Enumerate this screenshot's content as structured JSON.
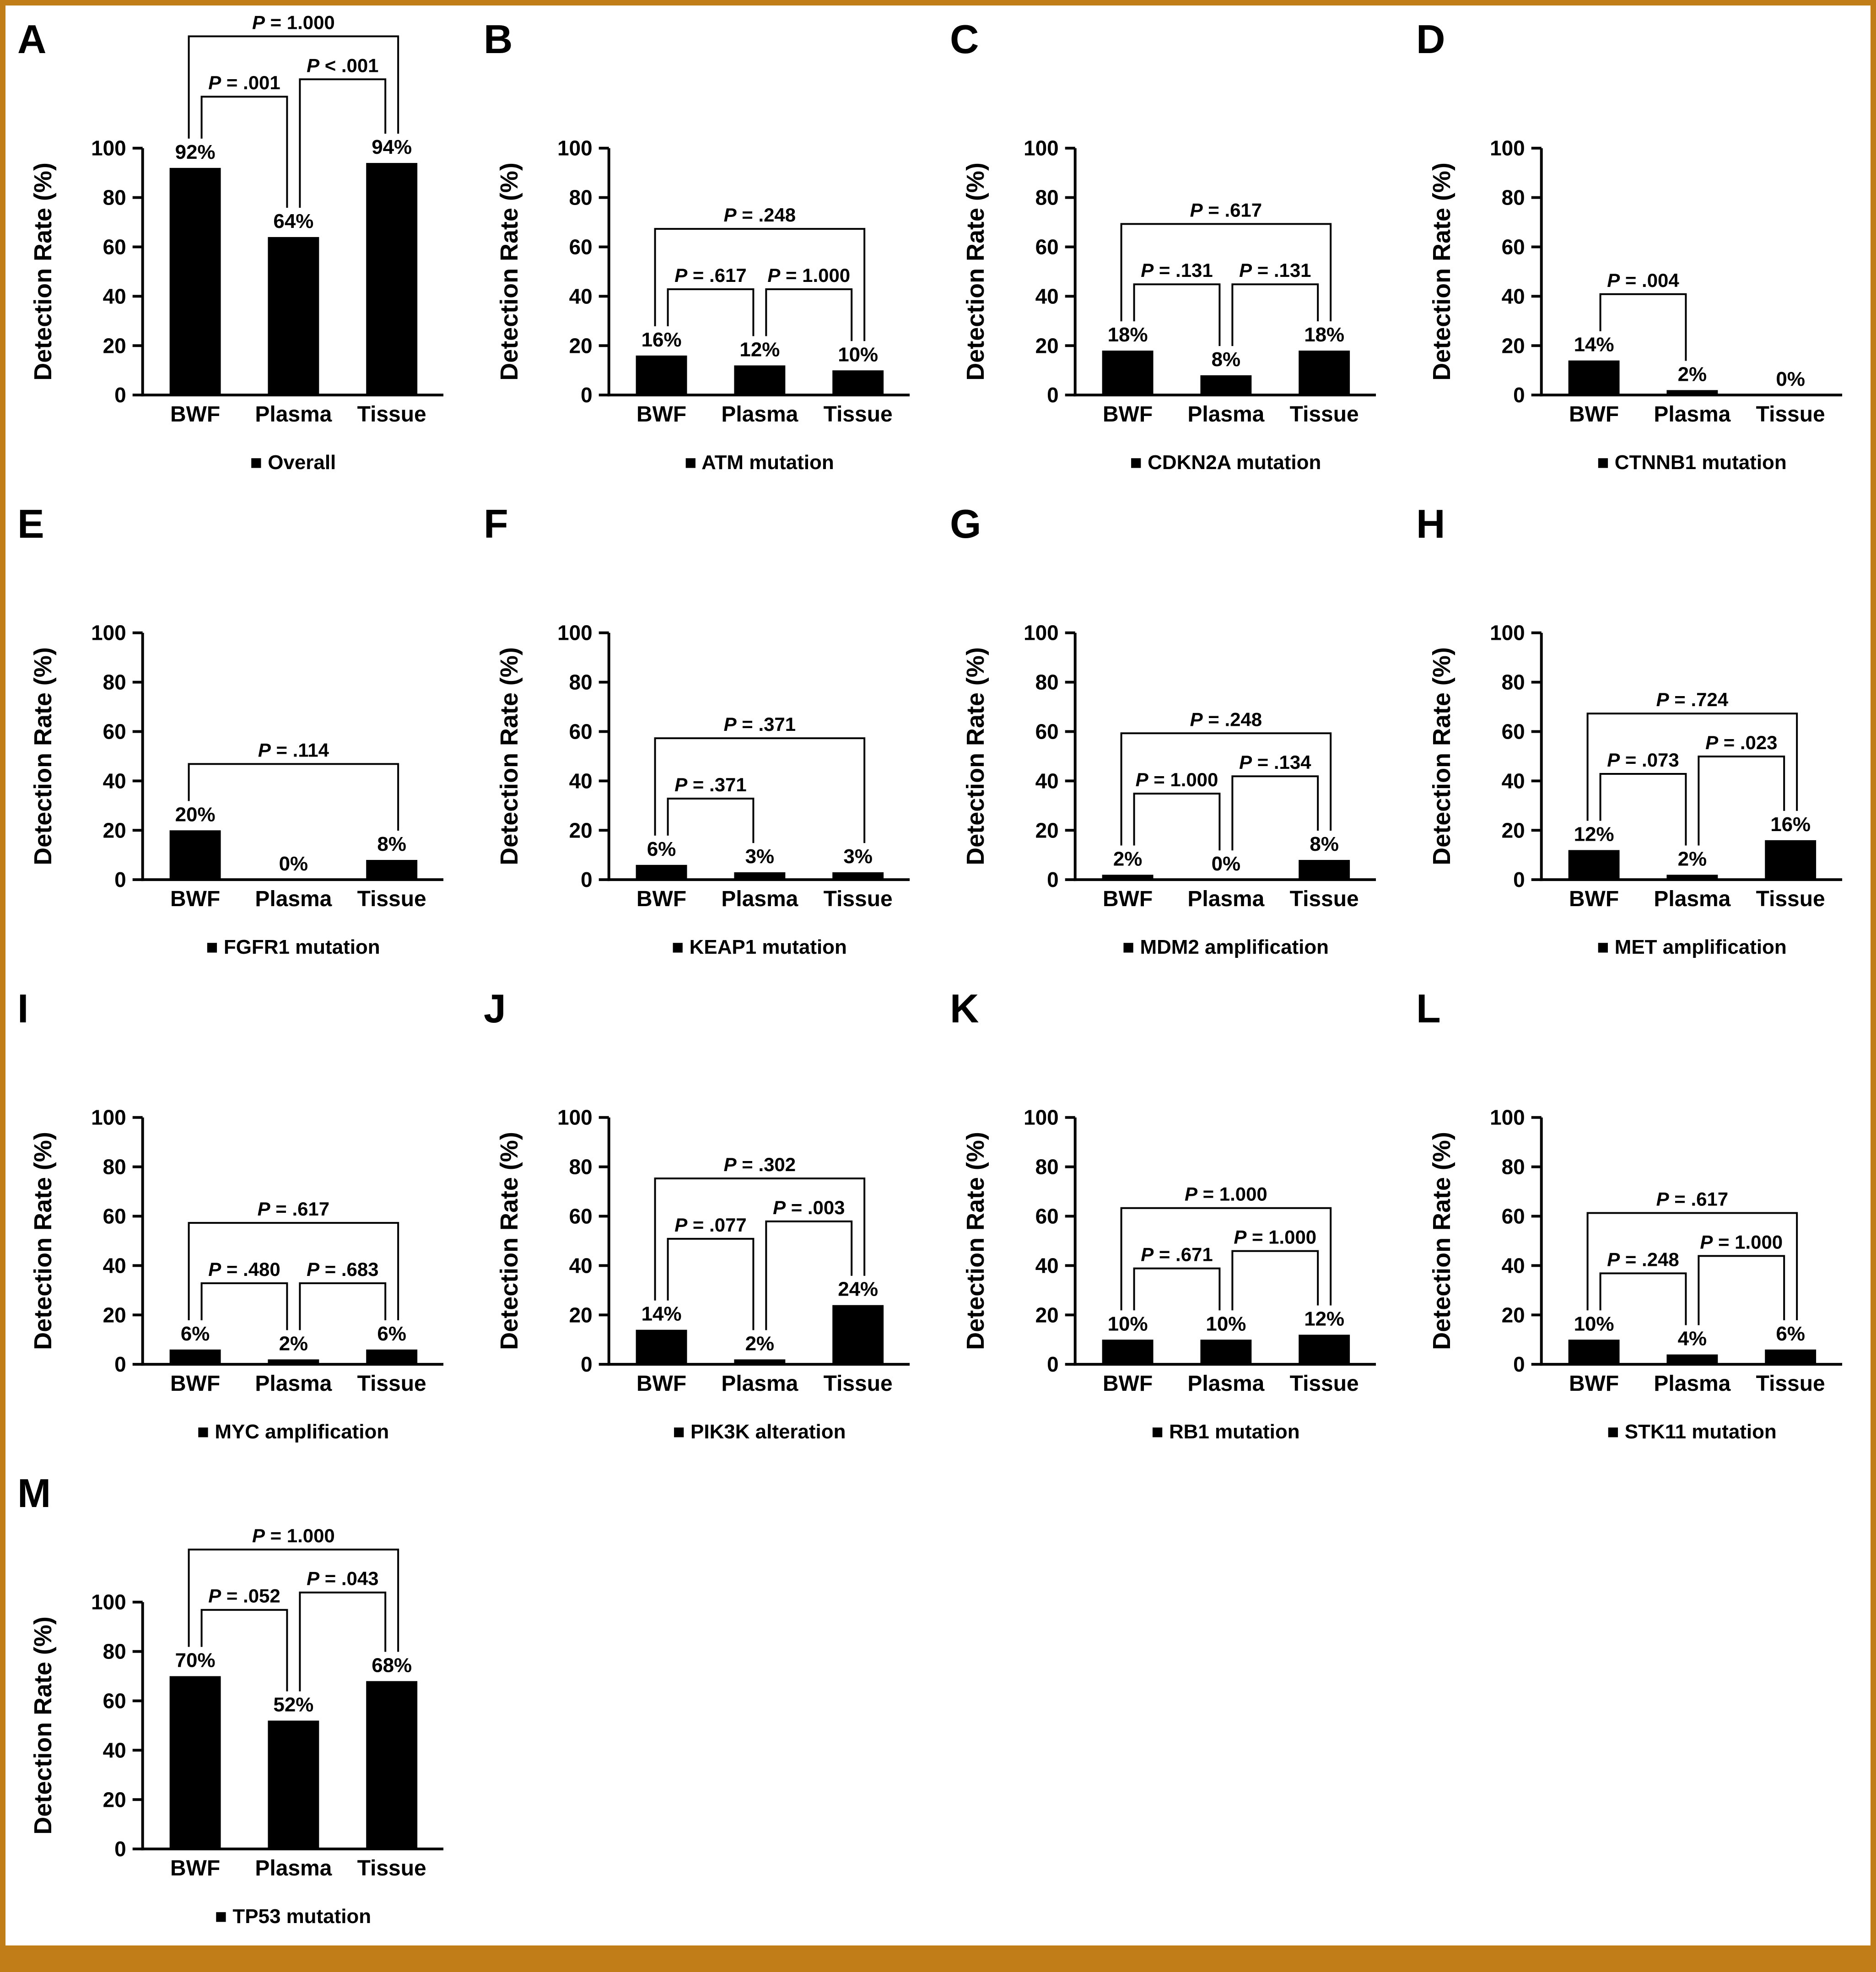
{
  "figure": {
    "frame_color": "#C17E18",
    "background_color": "#FFFFFF",
    "bar_color": "#000000",
    "y_ticks": [
      0,
      20,
      40,
      60,
      80,
      100
    ],
    "panel_letters": [
      "A",
      "B",
      "C",
      "D",
      "E",
      "F",
      "G",
      "H",
      "I",
      "J",
      "K",
      "L",
      "M"
    ]
  },
  "chart_data": [
    {
      "panel": "A",
      "type": "bar",
      "legend": "Overall",
      "xlabel": "",
      "ylabel": "Detection Rate (%)",
      "ylim": [
        0,
        100
      ],
      "grid": false,
      "categories": [
        "BWF",
        "Plasma",
        "Tissue"
      ],
      "values": [
        92,
        64,
        94
      ],
      "p_values": [
        {
          "pair": [
            0,
            1
          ],
          "label": "P = .001",
          "level": 1
        },
        {
          "pair": [
            1,
            2
          ],
          "label": "P < .001",
          "level": 1.5
        },
        {
          "pair": [
            0,
            2
          ],
          "label": "P = 1.000",
          "level": 2
        }
      ]
    },
    {
      "panel": "B",
      "type": "bar",
      "legend": "ATM mutation",
      "xlabel": "",
      "ylabel": "Detection Rate (%)",
      "ylim": [
        0,
        100
      ],
      "grid": false,
      "categories": [
        "BWF",
        "Plasma",
        "Tissue"
      ],
      "values": [
        16,
        12,
        10
      ],
      "p_values": [
        {
          "pair": [
            0,
            1
          ],
          "label": "P = .617",
          "level": 1
        },
        {
          "pair": [
            1,
            2
          ],
          "label": "P = 1.000",
          "level": 1
        },
        {
          "pair": [
            0,
            2
          ],
          "label": "P = .248",
          "level": 2
        }
      ]
    },
    {
      "panel": "C",
      "type": "bar",
      "legend": "CDKN2A mutation",
      "xlabel": "",
      "ylabel": "Detection Rate (%)",
      "ylim": [
        0,
        100
      ],
      "grid": false,
      "categories": [
        "BWF",
        "Plasma",
        "Tissue"
      ],
      "values": [
        18,
        8,
        18
      ],
      "p_values": [
        {
          "pair": [
            0,
            1
          ],
          "label": "P = .131",
          "level": 1
        },
        {
          "pair": [
            1,
            2
          ],
          "label": "P = .131",
          "level": 1
        },
        {
          "pair": [
            0,
            2
          ],
          "label": "P = .617",
          "level": 2
        }
      ]
    },
    {
      "panel": "D",
      "type": "bar",
      "legend": "CTNNB1 mutation",
      "xlabel": "",
      "ylabel": "Detection Rate (%)",
      "ylim": [
        0,
        100
      ],
      "grid": false,
      "categories": [
        "BWF",
        "Plasma",
        "Tissue"
      ],
      "values": [
        14,
        2,
        0
      ],
      "p_values": [
        {
          "pair": [
            0,
            1
          ],
          "label": "P = .004",
          "level": 1
        }
      ]
    },
    {
      "panel": "E",
      "type": "bar",
      "legend": "FGFR1 mutation",
      "xlabel": "",
      "ylabel": "Detection Rate (%)",
      "ylim": [
        0,
        100
      ],
      "grid": false,
      "categories": [
        "BWF",
        "Plasma",
        "Tissue"
      ],
      "values": [
        20,
        0,
        8
      ],
      "p_values": [
        {
          "pair": [
            0,
            2
          ],
          "label": "P = .114",
          "level": 1
        }
      ]
    },
    {
      "panel": "F",
      "type": "bar",
      "legend": "KEAP1 mutation",
      "xlabel": "",
      "ylabel": "Detection Rate (%)",
      "ylim": [
        0,
        100
      ],
      "grid": false,
      "categories": [
        "BWF",
        "Plasma",
        "Tissue"
      ],
      "values": [
        6,
        3,
        3
      ],
      "p_values": [
        {
          "pair": [
            0,
            1
          ],
          "label": "P = .371",
          "level": 1
        },
        {
          "pair": [
            0,
            2
          ],
          "label": "P = .371",
          "level": 2
        }
      ]
    },
    {
      "panel": "G",
      "type": "bar",
      "legend": "MDM2 amplification",
      "xlabel": "",
      "ylabel": "Detection Rate (%)",
      "ylim": [
        0,
        100
      ],
      "grid": false,
      "categories": [
        "BWF",
        "Plasma",
        "Tissue"
      ],
      "values": [
        2,
        0,
        8
      ],
      "p_values": [
        {
          "pair": [
            0,
            1
          ],
          "label": "P = 1.000",
          "level": 1
        },
        {
          "pair": [
            1,
            2
          ],
          "label": "P = .134",
          "level": 1.5
        },
        {
          "pair": [
            0,
            2
          ],
          "label": "P = .248",
          "level": 2
        }
      ]
    },
    {
      "panel": "H",
      "type": "bar",
      "legend": "MET amplification",
      "xlabel": "",
      "ylabel": "Detection Rate (%)",
      "ylim": [
        0,
        100
      ],
      "grid": false,
      "categories": [
        "BWF",
        "Plasma",
        "Tissue"
      ],
      "values": [
        12,
        2,
        16
      ],
      "p_values": [
        {
          "pair": [
            0,
            1
          ],
          "label": "P = .073",
          "level": 1
        },
        {
          "pair": [
            1,
            2
          ],
          "label": "P = .023",
          "level": 1.5
        },
        {
          "pair": [
            0,
            2
          ],
          "label": "P = .724",
          "level": 2
        }
      ]
    },
    {
      "panel": "I",
      "type": "bar",
      "legend": "MYC amplification",
      "xlabel": "",
      "ylabel": "Detection Rate (%)",
      "ylim": [
        0,
        100
      ],
      "grid": false,
      "categories": [
        "BWF",
        "Plasma",
        "Tissue"
      ],
      "values": [
        6,
        2,
        6
      ],
      "p_values": [
        {
          "pair": [
            0,
            1
          ],
          "label": "P = .480",
          "level": 1
        },
        {
          "pair": [
            1,
            2
          ],
          "label": "P = .683",
          "level": 1
        },
        {
          "pair": [
            0,
            2
          ],
          "label": "P = .617",
          "level": 2
        }
      ]
    },
    {
      "panel": "J",
      "type": "bar",
      "legend": "PIK3K alteration",
      "xlabel": "",
      "ylabel": "Detection Rate (%)",
      "ylim": [
        0,
        100
      ],
      "grid": false,
      "categories": [
        "BWF",
        "Plasma",
        "Tissue"
      ],
      "values": [
        14,
        2,
        24
      ],
      "p_values": [
        {
          "pair": [
            0,
            1
          ],
          "label": "P = .077",
          "level": 1
        },
        {
          "pair": [
            1,
            2
          ],
          "label": "P = .003",
          "level": 1.5
        },
        {
          "pair": [
            0,
            2
          ],
          "label": "P = .302",
          "level": 2
        }
      ]
    },
    {
      "panel": "K",
      "type": "bar",
      "legend": "RB1 mutation",
      "xlabel": "",
      "ylabel": "Detection Rate (%)",
      "ylim": [
        0,
        100
      ],
      "grid": false,
      "categories": [
        "BWF",
        "Plasma",
        "Tissue"
      ],
      "values": [
        10,
        10,
        12
      ],
      "p_values": [
        {
          "pair": [
            0,
            1
          ],
          "label": "P = .671",
          "level": 1
        },
        {
          "pair": [
            1,
            2
          ],
          "label": "P = 1.000",
          "level": 1.5
        },
        {
          "pair": [
            0,
            2
          ],
          "label": "P = 1.000",
          "level": 2
        }
      ]
    },
    {
      "panel": "L",
      "type": "bar",
      "legend": "STK11 mutation",
      "xlabel": "",
      "ylabel": "Detection Rate (%)",
      "ylim": [
        0,
        100
      ],
      "grid": false,
      "categories": [
        "BWF",
        "Plasma",
        "Tissue"
      ],
      "values": [
        10,
        4,
        6
      ],
      "p_values": [
        {
          "pair": [
            0,
            1
          ],
          "label": "P = .248",
          "level": 1
        },
        {
          "pair": [
            1,
            2
          ],
          "label": "P = 1.000",
          "level": 1.5
        },
        {
          "pair": [
            0,
            2
          ],
          "label": "P = .617",
          "level": 2
        }
      ]
    },
    {
      "panel": "M",
      "type": "bar",
      "legend": "TP53 mutation",
      "xlabel": "",
      "ylabel": "Detection Rate (%)",
      "ylim": [
        0,
        100
      ],
      "grid": false,
      "categories": [
        "BWF",
        "Plasma",
        "Tissue"
      ],
      "values": [
        70,
        52,
        68
      ],
      "p_values": [
        {
          "pair": [
            0,
            1
          ],
          "label": "P = .052",
          "level": 1
        },
        {
          "pair": [
            1,
            2
          ],
          "label": "P = .043",
          "level": 1.5
        },
        {
          "pair": [
            0,
            2
          ],
          "label": "P = 1.000",
          "level": 2
        }
      ]
    }
  ]
}
